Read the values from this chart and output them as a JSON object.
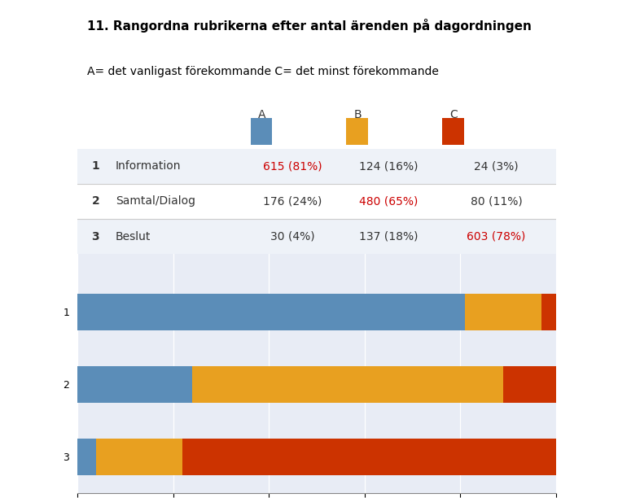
{
  "title": "11. Rangordna rubrikerna efter antal ärenden på dagordningen",
  "subtitle": "A= det vanligast förekommande C= det minst förekommande",
  "categories": [
    "A",
    "B",
    "C"
  ],
  "colors": [
    "#5B8DB8",
    "#E8A020",
    "#CC3300"
  ],
  "rows": [
    {
      "label": "Information",
      "number": 1,
      "values": [
        81,
        16,
        3
      ],
      "texts": [
        "615 (81%)",
        "124 (16%)",
        "24 (3%)"
      ],
      "highlight": 0
    },
    {
      "label": "Samtal/Dialog",
      "number": 2,
      "values": [
        24,
        65,
        11
      ],
      "texts": [
        "176 (24%)",
        "480 (65%)",
        "80 (11%)"
      ],
      "highlight": 1
    },
    {
      "label": "Beslut",
      "number": 3,
      "values": [
        4,
        18,
        78
      ],
      "texts": [
        "30 (4%)",
        "137 (18%)",
        "603 (78%)"
      ],
      "highlight": 2
    }
  ],
  "highlight_color": "#CC0000",
  "normal_color": "#333333",
  "table_bg_color_even": "#EEF2F8",
  "table_bg_color_odd": "#FFFFFF",
  "chart_bg_color": "#E8ECF5",
  "xlim": [
    0,
    100
  ],
  "xticks": [
    0,
    20,
    40,
    60,
    80,
    100
  ]
}
